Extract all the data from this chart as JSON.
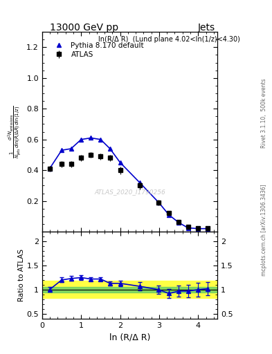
{
  "title_left": "13000 GeV pp",
  "title_right": "Jets",
  "annotation": "ln(R/Δ R)  (Lund plane 4.02<ln(1/z)<4.30)",
  "watermark": "ATLAS_2020_I1790256",
  "right_label": "mcplots.cern.ch [arXiv:1306.3436]",
  "right_label2": "Rivet 3.1.10,  500k events",
  "ylabel_main": "$\\frac{1}{N_{\\mathrm{jets}}}\\frac{d^2 N_{\\mathrm{emissions}}}{d\\ln(R/\\Delta R)\\, d\\ln(1/z)}$",
  "ylabel_ratio": "Ratio to ATLAS",
  "xlabel": "ln (R/Δ R)",
  "atlas_x": [
    0.19,
    0.5,
    0.74,
    1.0,
    1.25,
    1.5,
    1.74,
    2.0,
    2.5,
    2.99,
    3.25,
    3.5,
    3.74,
    4.0,
    4.25
  ],
  "atlas_y": [
    0.41,
    0.44,
    0.44,
    0.48,
    0.5,
    0.49,
    0.48,
    0.4,
    0.3,
    0.19,
    0.12,
    0.065,
    0.03,
    0.022,
    0.021
  ],
  "atlas_yerr": [
    0.02,
    0.02,
    0.02,
    0.02,
    0.02,
    0.02,
    0.02,
    0.025,
    0.025,
    0.018,
    0.012,
    0.008,
    0.004,
    0.003,
    0.003
  ],
  "pythia_x": [
    0.19,
    0.5,
    0.74,
    1.0,
    1.25,
    1.5,
    1.74,
    2.0,
    2.5,
    2.99,
    3.25,
    3.5,
    3.74,
    4.0,
    4.25
  ],
  "pythia_y": [
    0.41,
    0.53,
    0.54,
    0.6,
    0.61,
    0.6,
    0.54,
    0.45,
    0.32,
    0.19,
    0.11,
    0.06,
    0.025,
    0.02,
    0.02
  ],
  "pythia_yerr": [
    0.004,
    0.004,
    0.004,
    0.005,
    0.005,
    0.005,
    0.005,
    0.004,
    0.003,
    0.002,
    0.0015,
    0.001,
    0.0007,
    0.0006,
    0.0006
  ],
  "ratio_x": [
    0.19,
    0.5,
    0.74,
    1.0,
    1.25,
    1.5,
    1.74,
    2.0,
    2.5,
    2.99,
    3.25,
    3.5,
    3.74,
    4.0,
    4.25
  ],
  "ratio_y": [
    1.0,
    1.2,
    1.23,
    1.25,
    1.22,
    1.22,
    1.13,
    1.13,
    1.07,
    1.0,
    0.92,
    0.97,
    0.97,
    1.0,
    1.02
  ],
  "ratio_yerr": [
    0.05,
    0.05,
    0.05,
    0.05,
    0.04,
    0.04,
    0.04,
    0.06,
    0.08,
    0.09,
    0.1,
    0.12,
    0.13,
    0.14,
    0.14
  ],
  "green_lo": 0.94,
  "green_hi": 1.06,
  "yellow_lo": 0.82,
  "yellow_hi": 1.18,
  "atlas_color": "#000000",
  "pythia_color": "#0000cc",
  "bg_color": "#ffffff",
  "green_color": "#66cc66",
  "yellow_color": "#ffff44",
  "ylim_main": [
    0.0,
    1.3
  ],
  "ylim_ratio": [
    0.4,
    2.2
  ],
  "xlim": [
    0.0,
    4.5
  ],
  "yticks_main": [
    0.2,
    0.4,
    0.6,
    0.8,
    1.0,
    1.2
  ],
  "yticks_ratio": [
    0.5,
    1.0,
    1.5,
    2.0
  ]
}
